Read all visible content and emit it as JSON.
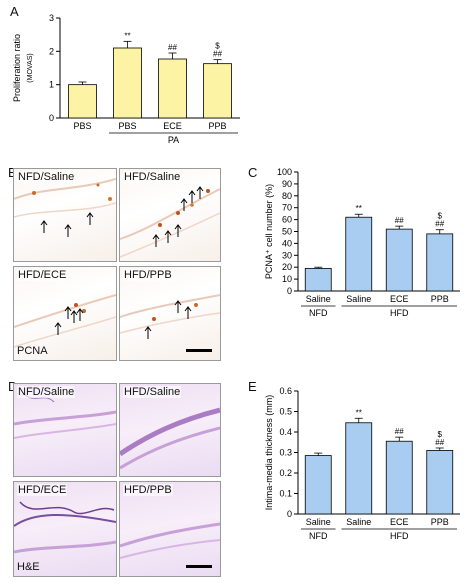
{
  "panels": {
    "A": "A",
    "B": "B",
    "C": "C",
    "D": "D",
    "E": "E"
  },
  "micrographs": {
    "B": {
      "tiles": [
        "NFD/Saline",
        "HFD/Saline",
        "HFD/ECE",
        "HFD/PPB"
      ],
      "stain": "PCNA"
    },
    "D": {
      "tiles": [
        "NFD/Saline",
        "HFD/Saline",
        "HFD/ECE",
        "HFD/PPB"
      ],
      "stain": "H&E"
    }
  },
  "chart_data": [
    {
      "id": "A",
      "type": "bar",
      "categories": [
        "PBS",
        "PBS",
        "ECE",
        "PPB"
      ],
      "group_label": "PA",
      "values": [
        1.0,
        2.1,
        1.77,
        1.63
      ],
      "errors": [
        0.08,
        0.2,
        0.18,
        0.12
      ],
      "annotations": [
        "",
        "**",
        "##",
        "$\n##"
      ],
      "ylabel_line1": "Proliferation ratio",
      "ylabel_line2": "(MOVAS)",
      "ylim": [
        0,
        3
      ],
      "yticks": [
        0,
        1,
        2,
        3
      ],
      "bar_color": "#fdf3a4"
    },
    {
      "id": "C",
      "type": "bar",
      "categories": [
        "Saline",
        "Saline",
        "ECE",
        "PPB"
      ],
      "groups": [
        {
          "label": "NFD",
          "span": [
            0,
            0
          ]
        },
        {
          "label": "HFD",
          "span": [
            1,
            3
          ]
        }
      ],
      "values": [
        19,
        62,
        52,
        48
      ],
      "errors": [
        1,
        2.5,
        2.5,
        3.5
      ],
      "annotations": [
        "",
        "**",
        "##",
        "$\n##"
      ],
      "ylabel": "PCNA⁺ cell number (%)",
      "ylim": [
        0,
        100
      ],
      "yticks": [
        0,
        10,
        20,
        30,
        40,
        50,
        60,
        70,
        80,
        90,
        100
      ],
      "bar_color": "#a9cdf0"
    },
    {
      "id": "E",
      "type": "bar",
      "categories": [
        "Saline",
        "Saline",
        "ECE",
        "PPB"
      ],
      "groups": [
        {
          "label": "NFD",
          "span": [
            0,
            0
          ]
        },
        {
          "label": "HFD",
          "span": [
            1,
            3
          ]
        }
      ],
      "values": [
        0.285,
        0.445,
        0.355,
        0.31
      ],
      "errors": [
        0.012,
        0.022,
        0.02,
        0.012
      ],
      "annotations": [
        "",
        "**",
        "##",
        "$\n##"
      ],
      "ylabel": "Intima-media thickness (mm)",
      "ylim": [
        0,
        0.6
      ],
      "yticks": [
        0,
        0.1,
        0.2,
        0.3,
        0.4,
        0.5,
        0.6
      ],
      "bar_color": "#a9cdf0"
    }
  ]
}
